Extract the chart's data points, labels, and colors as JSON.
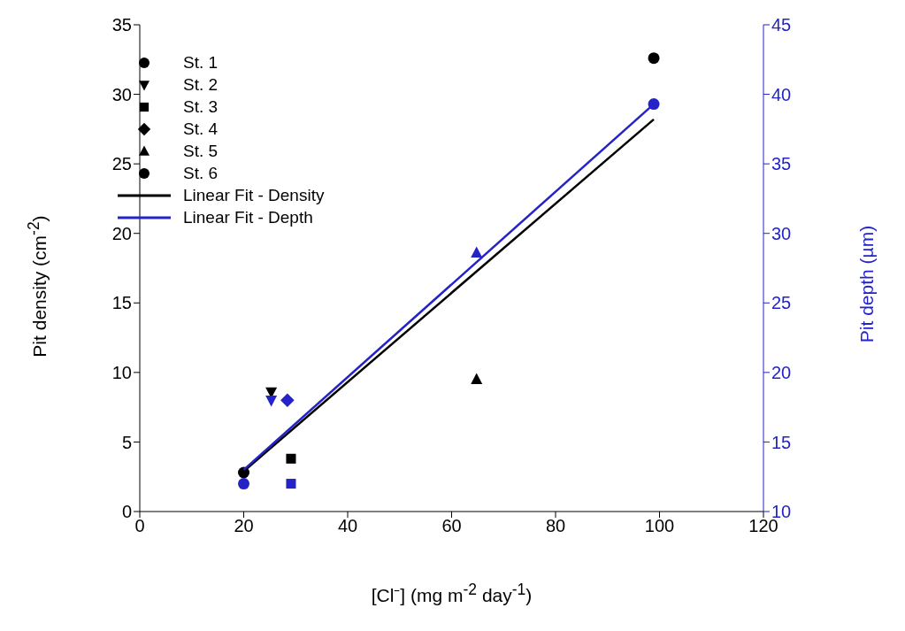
{
  "chart_data": {
    "type": "scatter",
    "xlabel": "[Cl⁻] (mg m$^{-2}$ day$^{-1}$)",
    "ylabel": "Pit density (cm$^{-2}$)",
    "y2label": "Pit depth (µm)",
    "xlim": [
      0,
      120
    ],
    "xticks": [
      0,
      20,
      40,
      60,
      80,
      100,
      120
    ],
    "ylim": [
      0,
      35
    ],
    "yticks": [
      0,
      5,
      10,
      15,
      20,
      25,
      30,
      35
    ],
    "y2lim": [
      10,
      45
    ],
    "y2ticks": [
      10,
      15,
      20,
      25,
      30,
      35,
      40,
      45
    ],
    "grid": false,
    "legend": "top left",
    "series": [
      {
        "name": "St. 1",
        "color": "#000000",
        "marker": "circle",
        "x": [
          20
        ],
        "values": [
          2.8
        ]
      },
      {
        "name": "St. 2",
        "color": "#000000",
        "marker": "triangle-down",
        "x": [
          25.3
        ],
        "values": [
          8.6
        ]
      },
      {
        "name": "St. 3",
        "color": "#000000",
        "marker": "square",
        "x": [
          29.1
        ],
        "values": [
          3.8
        ]
      },
      {
        "name": "St. 4",
        "color": "#000000",
        "marker": "diamond"
      },
      {
        "name": "St. 5",
        "color": "#000000",
        "marker": "triangle",
        "x": [
          64.8
        ],
        "values": [
          9.5
        ]
      },
      {
        "name": "St. 6",
        "color": "#000000",
        "x": [
          98.9
        ],
        "values": [
          32.6
        ]
      },
      {
        "name": "Linear Fit - Density",
        "type": "line",
        "color": "#000000",
        "marker": "none",
        "x": [
          20,
          98.9
        ],
        "values": [
          2.9,
          28.2
        ]
      },
      {
        "name": "Linear Fit - Depth",
        "type": "line",
        "color": "#2323c8",
        "marker": "none",
        "axis": "y2",
        "x": [
          20,
          98.9
        ],
        "values": [
          13.0,
          39.3
        ]
      },
      {
        "color": "#2323c8",
        "marker": "circle",
        "axis": "y2",
        "x": [
          20
        ],
        "values": [
          12
        ]
      },
      {
        "color": "#2323c8",
        "marker": "triangle-down",
        "axis": "y2",
        "x": [
          25.3
        ],
        "values": [
          18
        ]
      },
      {
        "color": "#2323c8",
        "marker": "square",
        "axis": "y2",
        "x": [
          29.1
        ],
        "values": [
          12
        ]
      },
      {
        "color": "#2323c8",
        "marker": "diamond",
        "axis": "y2",
        "x": [
          28.4
        ],
        "values": [
          18
        ]
      },
      {
        "color": "#2323c8",
        "marker": "triangle",
        "axis": "y2",
        "x": [
          64.8
        ],
        "values": [
          28.6
        ]
      },
      {
        "color": "#2323c8",
        "axis": "y2",
        "x": [
          98.9
        ],
        "values": [
          39.3
        ]
      }
    ]
  }
}
